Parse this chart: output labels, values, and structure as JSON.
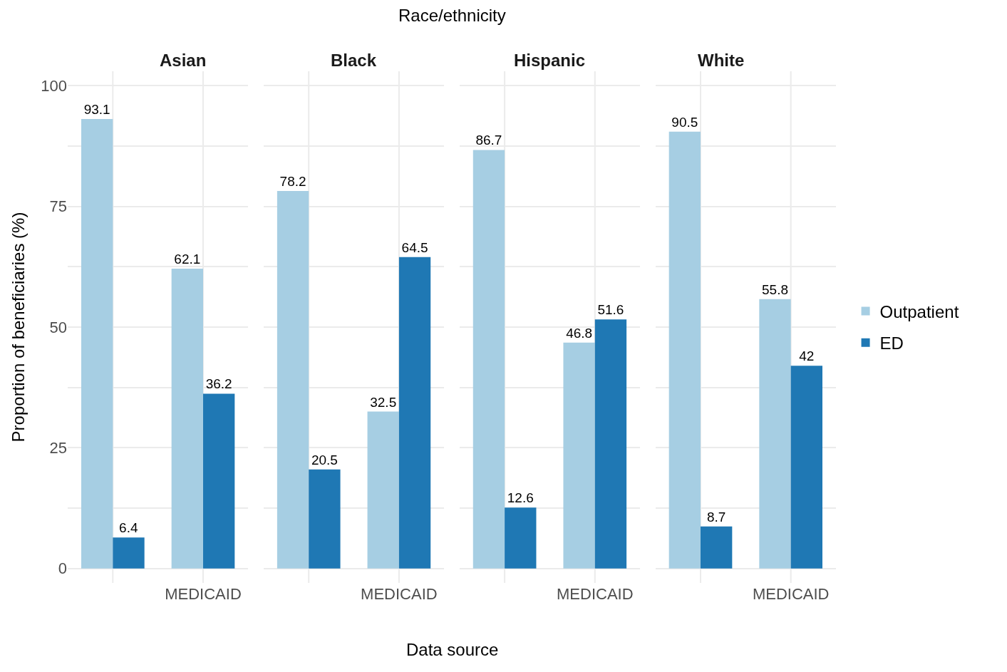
{
  "chart_data": [
    {
      "type": "bar",
      "title": "Asian",
      "annotations": [
        "Race/ethnicity",
        "Data source"
      ],
      "ylabel": "Proportion of beneficiaries (%)",
      "categories": [
        null,
        "MEDICAID"
      ],
      "series": [
        {
          "color": "#a6cee3",
          "values": [
            93.1,
            62.1
          ]
        },
        {
          "color": "#1f78b4",
          "values": [
            6.4,
            36.2
          ]
        }
      ],
      "ylim": [
        -3,
        103
      ],
      "yticks": [
        0,
        {
          "value": 12.5,
          "label": null
        },
        25,
        {
          "value": 37.5,
          "label": null
        },
        50,
        {
          "value": 62.5,
          "label": null
        },
        75,
        {
          "value": 87.5,
          "label": null
        },
        100
      ],
      "grid": true,
      "data_labels": true
    },
    {
      "type": "bar",
      "title": "Black",
      "categories": [
        null,
        "MEDICAID"
      ],
      "series": [
        {
          "color": "#a6cee3",
          "values": [
            78.2,
            32.5
          ]
        },
        {
          "color": "#1f78b4",
          "values": [
            20.5,
            64.5
          ]
        }
      ],
      "ylim": [
        -3,
        103
      ],
      "yticks": [
        0,
        {
          "value": 12.5,
          "label": null
        },
        25,
        {
          "value": 37.5,
          "label": null
        },
        50,
        {
          "value": 62.5,
          "label": null
        },
        75,
        {
          "value": 87.5,
          "label": null
        },
        100
      ],
      "grid": true,
      "data_labels": true,
      "tick_labels": "x"
    },
    {
      "type": "bar",
      "title": "Hispanic",
      "categories": [
        null,
        "MEDICAID"
      ],
      "series": [
        {
          "color": "#a6cee3",
          "values": [
            86.7,
            46.8
          ]
        },
        {
          "color": "#1f78b4",
          "values": [
            12.6,
            51.6
          ]
        }
      ],
      "ylim": [
        -3,
        103
      ],
      "yticks": [
        0,
        {
          "value": 12.5,
          "label": null
        },
        25,
        {
          "value": 37.5,
          "label": null
        },
        50,
        {
          "value": 62.5,
          "label": null
        },
        75,
        {
          "value": 87.5,
          "label": null
        },
        100
      ],
      "grid": true,
      "data_labels": true,
      "tick_labels": "x"
    },
    {
      "type": "bar",
      "title": "White",
      "categories": [
        null,
        "MEDICAID"
      ],
      "series": [
        {
          "name": "Outpatient",
          "color": "#a6cee3",
          "values": [
            90.5,
            55.8
          ]
        },
        {
          "name": "ED",
          "color": "#1f78b4",
          "values": [
            8.7,
            42
          ]
        }
      ],
      "ylim": [
        -3,
        103
      ],
      "yticks": [
        0,
        {
          "value": 12.5,
          "label": null
        },
        25,
        {
          "value": 37.5,
          "label": null
        },
        50,
        {
          "value": 62.5,
          "label": null
        },
        75,
        {
          "value": 87.5,
          "label": null
        },
        100
      ],
      "grid": true,
      "data_labels": true,
      "tick_labels": "x",
      "legend": "right"
    }
  ]
}
